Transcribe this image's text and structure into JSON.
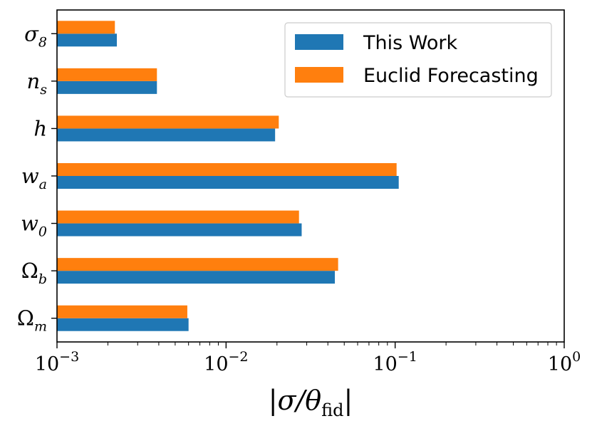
{
  "chart_data": {
    "type": "bar",
    "orientation": "horizontal",
    "xscale": "log",
    "xlim": [
      0.001,
      1
    ],
    "categories": [
      {
        "base": "Ω",
        "sub": "m",
        "italic_base": false
      },
      {
        "base": "Ω",
        "sub": "b",
        "italic_base": false
      },
      {
        "base": "w",
        "sub": "0",
        "italic_base": true
      },
      {
        "base": "w",
        "sub": "a",
        "italic_base": true
      },
      {
        "base": "h",
        "sub": "",
        "italic_base": true
      },
      {
        "base": "n",
        "sub": "s",
        "italic_base": true
      },
      {
        "base": "σ",
        "sub": "8",
        "italic_base": true
      }
    ],
    "series": [
      {
        "name": "This Work",
        "color": "#1f77b4",
        "values": [
          0.006,
          0.044,
          0.028,
          0.105,
          0.0195,
          0.0039,
          0.00226
        ]
      },
      {
        "name": "Euclid Forecasting",
        "color": "#ff7f0e",
        "values": [
          0.0059,
          0.046,
          0.027,
          0.102,
          0.0205,
          0.0039,
          0.0022
        ]
      }
    ],
    "xticks": [
      {
        "value": 0.001,
        "base": "10",
        "exp": "−3"
      },
      {
        "value": 0.01,
        "base": "10",
        "exp": "−2"
      },
      {
        "value": 0.1,
        "base": "10",
        "exp": "−1"
      },
      {
        "value": 1,
        "base": "10",
        "exp": "0"
      }
    ],
    "xlabel": {
      "pre": "|σ/θ",
      "sub": "fid",
      "post": "|"
    },
    "ylabel": "",
    "title": "",
    "grid": false,
    "legend_position": "top-right"
  }
}
